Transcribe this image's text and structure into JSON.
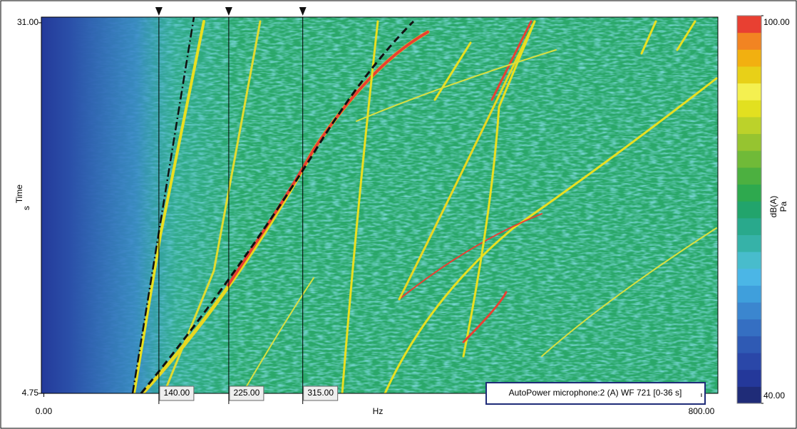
{
  "chart_data": {
    "type": "spectrogram",
    "title": "AutoPower microphone:2 (A) WF 721 [0-36 s]",
    "x_label": "Hz",
    "y_label": "Time",
    "y_unit": "s",
    "xlim": [
      -3,
      820
    ],
    "xticks": [
      {
        "value": 0,
        "label": "0.00"
      },
      {
        "value": 800,
        "label": "800.00"
      }
    ],
    "ylim": [
      4.75,
      31.4
    ],
    "yticks": [
      {
        "value": 4.75,
        "label": "4.75"
      },
      {
        "value": 31,
        "label": "31.00"
      }
    ],
    "cursors": [
      {
        "value": 140,
        "label": "140.00"
      },
      {
        "value": 225,
        "label": "225.00"
      },
      {
        "value": 315,
        "label": "315.00"
      }
    ],
    "colorbar": {
      "label": "dB(A)",
      "unit": "Pa",
      "lim": [
        40,
        100
      ],
      "ticks": [
        {
          "value": 40,
          "label": "40.00"
        },
        {
          "value": 100,
          "label": "100.00"
        }
      ],
      "colors": [
        "#1f2c78",
        "#24389a",
        "#2a47a8",
        "#2f5ab4",
        "#356fc2",
        "#3b86cf",
        "#3f9fdc",
        "#4bb6e6",
        "#48bccc",
        "#36b2a8",
        "#29a98c",
        "#22a46c",
        "#2ea94e",
        "#4cb040",
        "#70ba38",
        "#96c430",
        "#bcd22a",
        "#e2e020",
        "#f4f050",
        "#e8d018",
        "#f2b010",
        "#f28422",
        "#e84032"
      ]
    }
  }
}
